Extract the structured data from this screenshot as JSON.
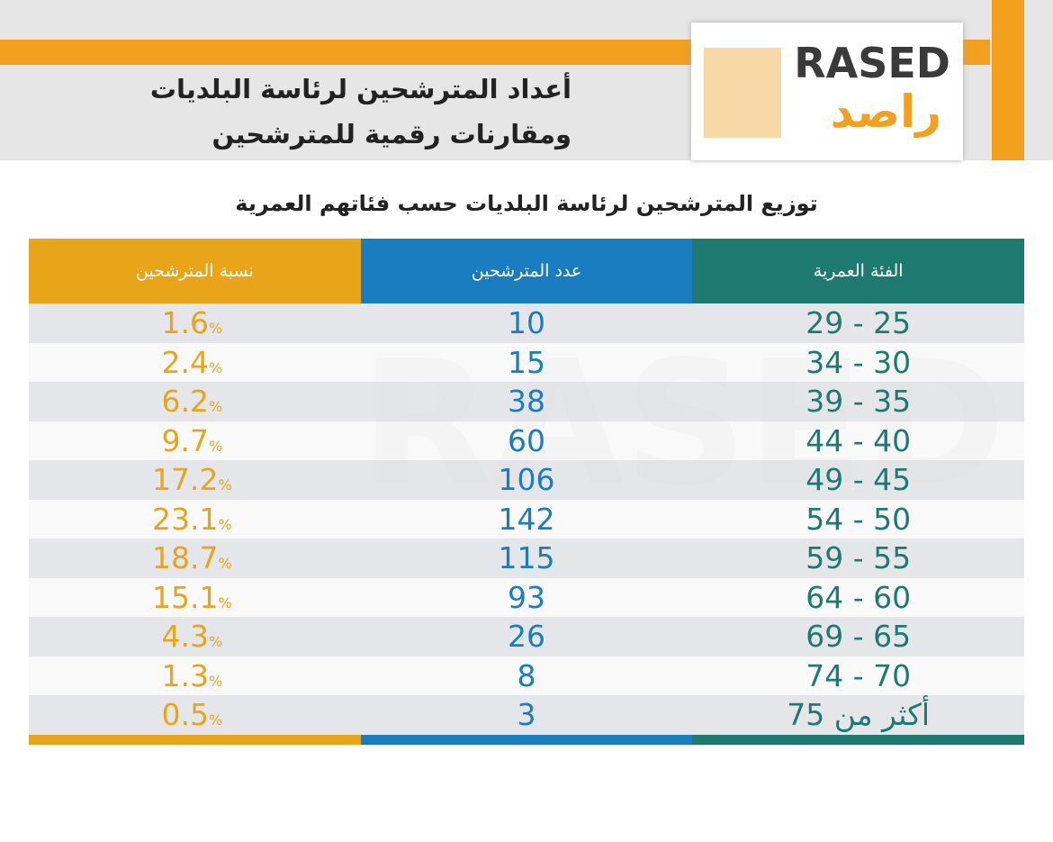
{
  "header": {
    "title_lines": [
      "أعداد المترشحين لرئاسة البلديات",
      "ومقارنات رقمية للمترشحين"
    ],
    "logo_latin": "RASED",
    "logo_arabic": "راصد"
  },
  "table": {
    "title": "توزيع المترشحين لرئاسة البلديات حسب فئاتهم العمرية",
    "columns": [
      "الفئة العمرية",
      "عدد المترشحين",
      "نسبة المترشحين"
    ],
    "percent_sign": "%",
    "rows": [
      [
        "25 - 29",
        10,
        1.6
      ],
      [
        "30 - 34",
        15,
        2.4
      ],
      [
        "35 - 39",
        38,
        6.2
      ],
      [
        "40 - 44",
        60,
        9.7
      ],
      [
        "45 - 49",
        106,
        17.2
      ],
      [
        "50 - 54",
        142,
        23.1
      ],
      [
        "55 - 59",
        115,
        18.7
      ],
      [
        "60 - 64",
        93,
        15.1
      ],
      [
        "65 - 69",
        26,
        4.3
      ],
      [
        "70 - 74",
        8,
        1.3
      ],
      [
        "أكثر من 75",
        3,
        0.5
      ]
    ]
  }
}
